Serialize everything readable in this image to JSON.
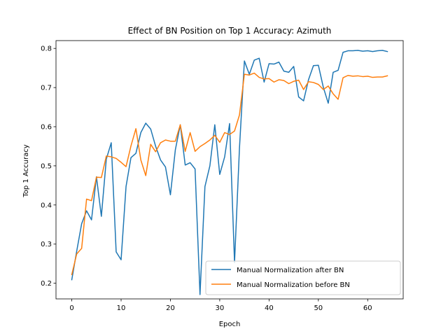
{
  "chart_data": {
    "type": "line",
    "title": "Effect of BN Position on Top 1 Accuracy: Azimuth",
    "xlabel": "Epoch",
    "ylabel": "Top 1 Accuracy",
    "xlim": [
      -3.2,
      67.2
    ],
    "ylim": [
      0.16,
      0.82
    ],
    "xticks": [
      0,
      10,
      20,
      30,
      40,
      50,
      60
    ],
    "yticks": [
      0.2,
      0.3,
      0.4,
      0.5,
      0.6,
      0.7,
      0.8
    ],
    "grid": false,
    "legend_position": "lower-right",
    "x": [
      0,
      1,
      2,
      3,
      4,
      5,
      6,
      7,
      8,
      9,
      10,
      11,
      12,
      13,
      14,
      15,
      16,
      17,
      18,
      19,
      20,
      21,
      22,
      23,
      24,
      25,
      26,
      27,
      28,
      29,
      30,
      31,
      32,
      33,
      34,
      35,
      36,
      37,
      38,
      39,
      40,
      41,
      42,
      43,
      44,
      45,
      46,
      47,
      48,
      49,
      50,
      51,
      52,
      53,
      54,
      55,
      56,
      57,
      58,
      59,
      60,
      61,
      62,
      63,
      64
    ],
    "series": [
      {
        "name": "Manual Normalization after BN",
        "color": "#1f77b4",
        "values": [
          0.209,
          0.282,
          0.352,
          0.385,
          0.362,
          0.472,
          0.371,
          0.517,
          0.559,
          0.28,
          0.26,
          0.447,
          0.521,
          0.532,
          0.585,
          0.609,
          0.594,
          0.55,
          0.515,
          0.497,
          0.426,
          0.541,
          0.605,
          0.502,
          0.508,
          0.492,
          0.171,
          0.447,
          0.5,
          0.605,
          0.478,
          0.523,
          0.608,
          0.253,
          0.545,
          0.768,
          0.734,
          0.77,
          0.775,
          0.714,
          0.761,
          0.76,
          0.765,
          0.742,
          0.739,
          0.754,
          0.676,
          0.666,
          0.72,
          0.756,
          0.757,
          0.701,
          0.66,
          0.739,
          0.744,
          0.79,
          0.794,
          0.794,
          0.795,
          0.793,
          0.794,
          0.792,
          0.794,
          0.795,
          0.792
        ]
      },
      {
        "name": "Manual Normalization before BN",
        "color": "#ff7f0e",
        "values": [
          0.222,
          0.275,
          0.289,
          0.415,
          0.411,
          0.471,
          0.47,
          0.525,
          0.523,
          0.519,
          0.509,
          0.498,
          0.551,
          0.595,
          0.515,
          0.475,
          0.555,
          0.536,
          0.559,
          0.566,
          0.563,
          0.563,
          0.605,
          0.537,
          0.585,
          0.537,
          0.549,
          0.557,
          0.566,
          0.578,
          0.56,
          0.585,
          0.58,
          0.589,
          0.63,
          0.734,
          0.732,
          0.737,
          0.726,
          0.722,
          0.723,
          0.714,
          0.72,
          0.718,
          0.71,
          0.716,
          0.719,
          0.695,
          0.715,
          0.713,
          0.708,
          0.695,
          0.704,
          0.684,
          0.67,
          0.725,
          0.731,
          0.729,
          0.73,
          0.728,
          0.729,
          0.726,
          0.727,
          0.727,
          0.73
        ]
      }
    ]
  }
}
